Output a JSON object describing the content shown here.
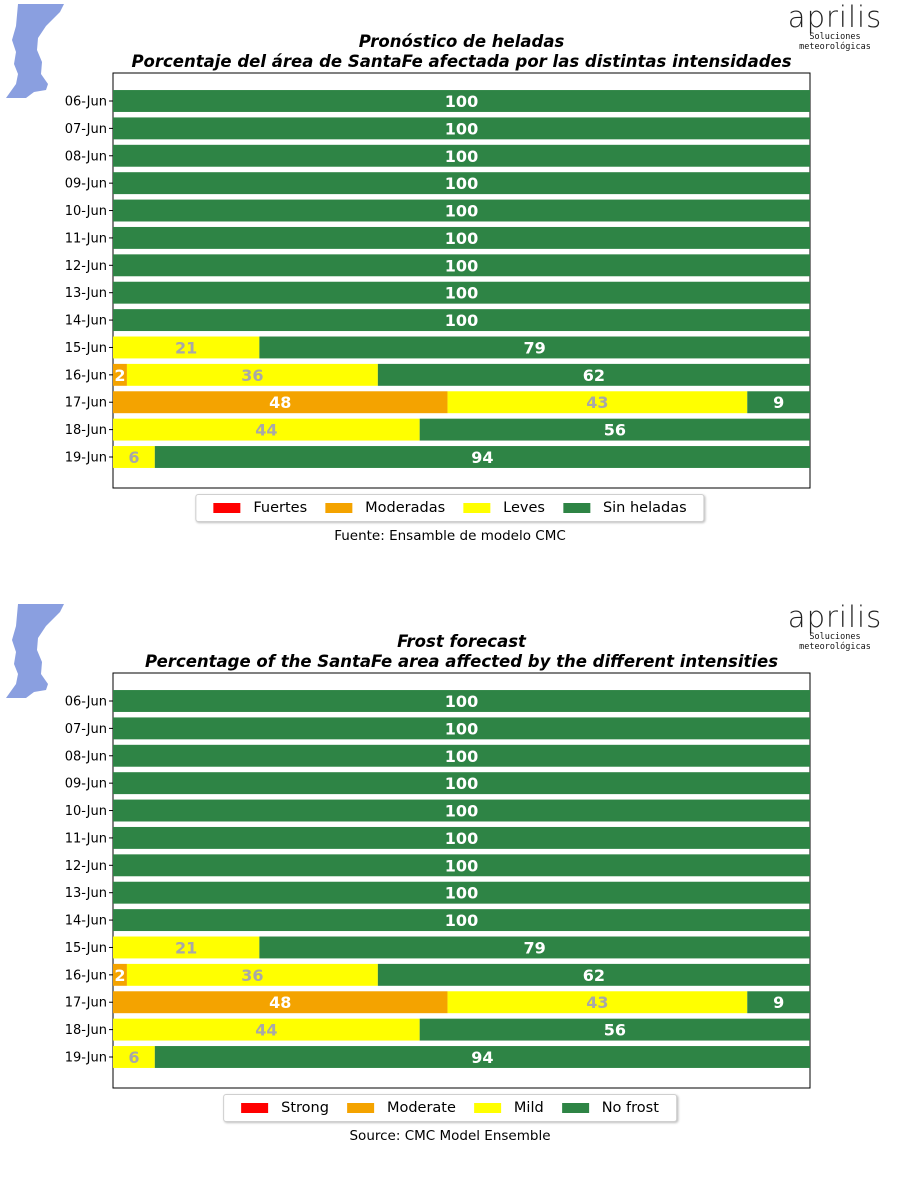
{
  "brand": {
    "name": "aprilis",
    "tagline": "Soluciones meteorológicas"
  },
  "colors": {
    "strong": "#ff0000",
    "moderate": "#f4a300",
    "mild": "#ffff00",
    "none": "#2e8445",
    "label_light": "#ffffff",
    "label_gray": "#a8a8a8",
    "map": "#8a9fe0"
  },
  "panels": [
    {
      "title_line1": "Pronóstico de heladas",
      "title_line2": "Porcentaje del área de SantaFe afectada por las distintas intensidades",
      "legend": [
        "Fuertes",
        "Moderadas",
        "Leves",
        "Sin heladas"
      ],
      "source": "Fuente: Ensamble de modelo CMC"
    },
    {
      "title_line1": "Frost forecast",
      "title_line2": "Percentage of the SantaFe area affected by the different intensities",
      "legend": [
        "Strong",
        "Moderate",
        "Mild",
        "No  frost"
      ],
      "source": "Source: CMC Model Ensemble"
    }
  ],
  "chart_data": [
    {
      "type": "bar",
      "orientation": "horizontal-stacked",
      "categories": [
        "06-Jun",
        "07-Jun",
        "08-Jun",
        "09-Jun",
        "10-Jun",
        "11-Jun",
        "12-Jun",
        "13-Jun",
        "14-Jun",
        "15-Jun",
        "16-Jun",
        "17-Jun",
        "18-Jun",
        "19-Jun"
      ],
      "series": [
        {
          "name": "Fuertes",
          "values": [
            0,
            0,
            0,
            0,
            0,
            0,
            0,
            0,
            0,
            0,
            0,
            0,
            0,
            0
          ]
        },
        {
          "name": "Moderadas",
          "values": [
            0,
            0,
            0,
            0,
            0,
            0,
            0,
            0,
            0,
            0,
            2,
            48,
            0,
            0
          ]
        },
        {
          "name": "Leves",
          "values": [
            0,
            0,
            0,
            0,
            0,
            0,
            0,
            0,
            0,
            21,
            36,
            43,
            44,
            6
          ]
        },
        {
          "name": "Sin heladas",
          "values": [
            100,
            100,
            100,
            100,
            100,
            100,
            100,
            100,
            100,
            79,
            62,
            9,
            56,
            94
          ]
        }
      ],
      "xlim": [
        0,
        100
      ],
      "grid": false,
      "legend_position": "bottom"
    },
    {
      "type": "bar",
      "orientation": "horizontal-stacked",
      "categories": [
        "06-Jun",
        "07-Jun",
        "08-Jun",
        "09-Jun",
        "10-Jun",
        "11-Jun",
        "12-Jun",
        "13-Jun",
        "14-Jun",
        "15-Jun",
        "16-Jun",
        "17-Jun",
        "18-Jun",
        "19-Jun"
      ],
      "series": [
        {
          "name": "Strong",
          "values": [
            0,
            0,
            0,
            0,
            0,
            0,
            0,
            0,
            0,
            0,
            0,
            0,
            0,
            0
          ]
        },
        {
          "name": "Moderate",
          "values": [
            0,
            0,
            0,
            0,
            0,
            0,
            0,
            0,
            0,
            0,
            2,
            48,
            0,
            0
          ]
        },
        {
          "name": "Mild",
          "values": [
            0,
            0,
            0,
            0,
            0,
            0,
            0,
            0,
            0,
            21,
            36,
            43,
            44,
            6
          ]
        },
        {
          "name": "No  frost",
          "values": [
            100,
            100,
            100,
            100,
            100,
            100,
            100,
            100,
            100,
            79,
            62,
            9,
            56,
            94
          ]
        }
      ],
      "xlim": [
        0,
        100
      ],
      "grid": false,
      "legend_position": "bottom"
    }
  ]
}
